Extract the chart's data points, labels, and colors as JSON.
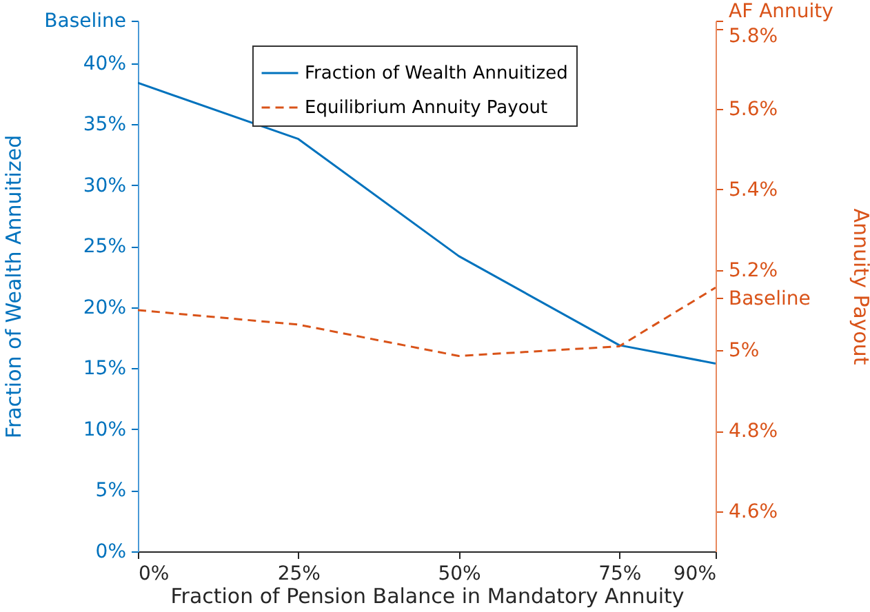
{
  "chart_data": {
    "type": "line",
    "xlabel": "Fraction of Pension Balance in Mandatory Annuity",
    "ylabel": "Fraction of Wealth Annuitized",
    "y2label": "Annuity Payout",
    "x": [
      0,
      25,
      50,
      75,
      90
    ],
    "series": [
      {
        "name": "Fraction of Wealth Annuitized",
        "color": "#0072bd",
        "line_style": "solid",
        "values": [
          38.4,
          33.8,
          24.2,
          16.9,
          15.4
        ]
      },
      {
        "name": "Equilibrium Annuity Payout",
        "color": "#d95319",
        "line_style": "dashed",
        "axis": "y2",
        "values": [
          5.1,
          5.064,
          4.986,
          5.01,
          5.156
        ]
      }
    ],
    "xlim": [
      0,
      90
    ],
    "xticks": [
      {
        "value": 0,
        "label": "0%"
      },
      {
        "value": 25,
        "label": "25%"
      },
      {
        "value": 50,
        "label": "50%"
      },
      {
        "value": 75,
        "label": "75%"
      },
      {
        "value": 90,
        "label": "90%"
      }
    ],
    "ylim": [
      0,
      43.5
    ],
    "yticks": [
      {
        "value": 0,
        "label": "0%"
      },
      {
        "value": 5,
        "label": "5%"
      },
      {
        "value": 10,
        "label": "10%"
      },
      {
        "value": 15,
        "label": "15%"
      },
      {
        "value": 20,
        "label": "20%"
      },
      {
        "value": 25,
        "label": "25%"
      },
      {
        "value": 30,
        "label": "30%"
      },
      {
        "value": 35,
        "label": "35%"
      },
      {
        "value": 40,
        "label": "40%"
      },
      {
        "value": 43.5,
        "label": "Baseline"
      }
    ],
    "y2lim": [
      4.5,
      5.82
    ],
    "y2ticks": [
      {
        "value": 4.6,
        "label": "4.6%"
      },
      {
        "value": 4.8,
        "label": "4.8%"
      },
      {
        "value": 5,
        "label": "5%"
      },
      {
        "value": 5.13,
        "label": "Baseline"
      },
      {
        "value": 5.2,
        "label": "5.2%"
      },
      {
        "value": 5.4,
        "label": "5.4%"
      },
      {
        "value": 5.6,
        "label": "5.6%"
      },
      {
        "value": 5.8,
        "label": "5.8%"
      },
      {
        "value": 5.82,
        "label": "AF Annuity"
      }
    ],
    "grid": false,
    "legend": "top",
    "marker": "none"
  }
}
